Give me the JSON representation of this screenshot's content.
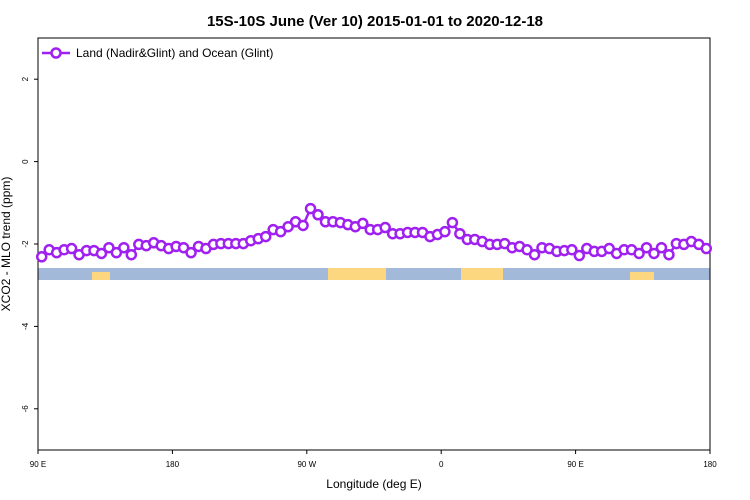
{
  "chart_data": {
    "type": "line",
    "title": "15S-10S June (Ver 10)   2015-01-01 to 2020-12-18",
    "x_label": "Longitude (deg E)",
    "y_label": "XCO2 - MLO trend (ppm)",
    "xlim": [
      90,
      540
    ],
    "ylim": [
      -7,
      3
    ],
    "xticks": [
      {
        "value": 90,
        "label": "90 E"
      },
      {
        "value": 180,
        "label": "180"
      },
      {
        "value": 270,
        "label": "90 W"
      },
      {
        "value": 360,
        "label": "0"
      },
      {
        "value": 450,
        "label": "90 E"
      },
      {
        "value": 540,
        "label": "180"
      }
    ],
    "yticks": [
      -6,
      -4,
      -2,
      0,
      2
    ],
    "legend": "top-left",
    "x": [
      92.5,
      97.5,
      102.5,
      107.5,
      112.5,
      117.5,
      122.5,
      127.5,
      132.5,
      137.5,
      142.5,
      147.5,
      152.5,
      157.5,
      162.5,
      167.5,
      172.5,
      177.5,
      182.5,
      187.5,
      192.5,
      197.5,
      202.5,
      207.5,
      212.5,
      217.5,
      222.5,
      227.5,
      232.5,
      237.5,
      242.5,
      247.5,
      252.5,
      257.5,
      262.5,
      267.5,
      272.5,
      277.5,
      282.5,
      287.5,
      292.5,
      297.5,
      302.5,
      307.5,
      312.5,
      317.5,
      322.5,
      327.5,
      332.5,
      337.5,
      342.5,
      347.5,
      352.5,
      357.5,
      362.5,
      367.5,
      372.5,
      377.5,
      382.5,
      387.5,
      392.5,
      397.5,
      402.5,
      407.5,
      412.5,
      417.5,
      422.5,
      427.5,
      432.5,
      437.5,
      442.5,
      447.5,
      452.5,
      457.5,
      462.5,
      467.5,
      472.5,
      477.5,
      482.5,
      487.5,
      492.5,
      497.5,
      502.5,
      507.5,
      512.5,
      517.5,
      522.5,
      527.5,
      532.5,
      537.5
    ],
    "series": [
      {
        "name": "Land (Nadir&Glint) and Ocean (Glint)",
        "color": "#a020f0",
        "values": [
          -2.31,
          -2.14,
          -2.21,
          -2.14,
          -2.11,
          -2.26,
          -2.16,
          -2.16,
          -2.23,
          -2.09,
          -2.21,
          -2.09,
          -2.26,
          -2.01,
          -2.04,
          -1.97,
          -2.04,
          -2.11,
          -2.06,
          -2.09,
          -2.21,
          -2.06,
          -2.11,
          -2.01,
          -1.99,
          -1.99,
          -1.99,
          -1.99,
          -1.92,
          -1.87,
          -1.82,
          -1.65,
          -1.7,
          -1.58,
          -1.46,
          -1.55,
          -1.14,
          -1.29,
          -1.46,
          -1.46,
          -1.48,
          -1.53,
          -1.58,
          -1.5,
          -1.65,
          -1.65,
          -1.6,
          -1.75,
          -1.75,
          -1.72,
          -1.72,
          -1.72,
          -1.82,
          -1.77,
          -1.7,
          -1.48,
          -1.75,
          -1.89,
          -1.89,
          -1.94,
          -2.01,
          -2.01,
          -1.99,
          -2.09,
          -2.06,
          -2.14,
          -2.26,
          -2.09,
          -2.11,
          -2.18,
          -2.16,
          -2.14,
          -2.28,
          -2.11,
          -2.18,
          -2.18,
          -2.11,
          -2.23,
          -2.14,
          -2.14,
          -2.23,
          -2.09,
          -2.23,
          -2.09,
          -2.26,
          -1.99,
          -2.01,
          -1.94,
          -2.01,
          -2.11
        ]
      }
    ]
  }
}
